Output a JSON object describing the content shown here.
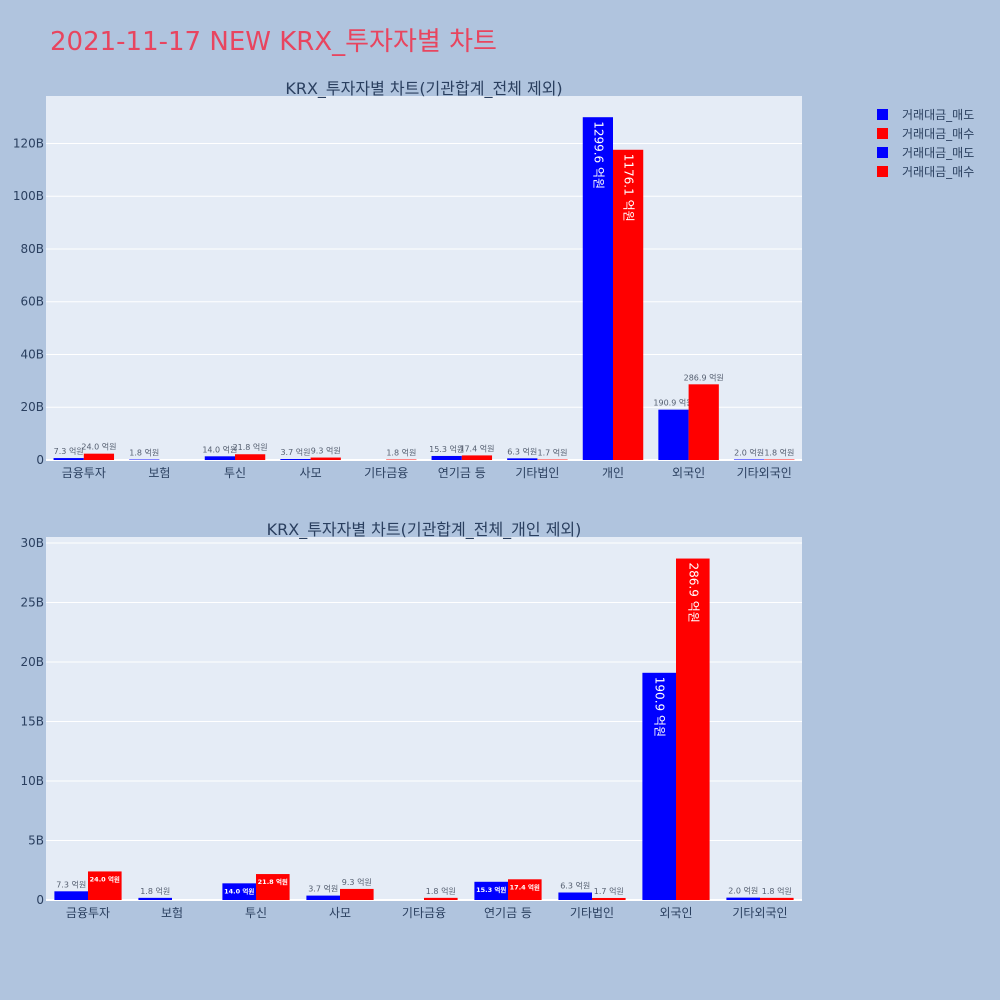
{
  "page": {
    "title": "2021-11-17 NEW KRX_투자자별 차트",
    "title_color": "#e8455f",
    "background": "#b0c4de",
    "plot_background": "#e5ecf6"
  },
  "legend": [
    {
      "label": "거래대금_매도",
      "color": "#0000ff"
    },
    {
      "label": "거래대금_매수",
      "color": "#ff0000"
    },
    {
      "label": "거래대금_매도",
      "color": "#0000ff"
    },
    {
      "label": "거래대금_매수",
      "color": "#ff0000"
    }
  ],
  "chart_data": [
    {
      "type": "bar",
      "title": "KRX_투자자별 차트(기관합계_전체 제외)",
      "categories": [
        "금융투자",
        "보험",
        "투신",
        "사모",
        "기타금융",
        "연기금 등",
        "기타법인",
        "개인",
        "외국인",
        "기타외국인"
      ],
      "yunit": "B",
      "ylim": [
        0,
        138
      ],
      "yticks": [
        0,
        20,
        40,
        60,
        80,
        100,
        120
      ],
      "ytick_labels": [
        "0",
        "20B",
        "40B",
        "60B",
        "80B",
        "100B",
        "120B"
      ],
      "series": [
        {
          "name": "거래대금_매도",
          "color": "#0000ff",
          "values": [
            0.73,
            0.18,
            1.4,
            0.37,
            0,
            1.53,
            0.63,
            129.96,
            19.09,
            0.2
          ],
          "labels": [
            "7.3 억원",
            "1.8 억원",
            "14.0 억원",
            "3.7 억원",
            "",
            "15.3 억원",
            "6.3 억원",
            "1299.6 억원",
            "190.9 억원",
            "2.0 억원"
          ]
        },
        {
          "name": "거래대금_매수",
          "color": "#ff0000",
          "values": [
            2.4,
            0,
            2.18,
            0.93,
            0.18,
            1.74,
            0.17,
            117.61,
            28.69,
            0.18
          ],
          "labels": [
            "24.0 억원",
            "",
            "21.8 억원",
            "9.3 억원",
            "1.8 억원",
            "17.4 억원",
            "1.7 억원",
            "1176.1 억원",
            "286.9 억원",
            "1.8 억원"
          ]
        }
      ],
      "grid": true,
      "legend_position": "top-right"
    },
    {
      "type": "bar",
      "title": "KRX_투자자별 차트(기관합계_전체_개인 제외)",
      "categories": [
        "금융투자",
        "보험",
        "투신",
        "사모",
        "기타금융",
        "연기금 등",
        "기타법인",
        "외국인",
        "기타외국인"
      ],
      "yunit": "B",
      "ylim": [
        0,
        30.5
      ],
      "yticks": [
        0,
        5,
        10,
        15,
        20,
        25,
        30
      ],
      "ytick_labels": [
        "0",
        "5B",
        "10B",
        "15B",
        "20B",
        "25B",
        "30B"
      ],
      "series": [
        {
          "name": "거래대금_매도",
          "color": "#0000ff",
          "values": [
            0.73,
            0.18,
            1.4,
            0.37,
            0,
            1.53,
            0.63,
            19.09,
            0.2
          ],
          "labels": [
            "7.3 억원",
            "1.8 억원",
            "14.0 억원",
            "3.7 억원",
            "",
            "15.3 억원",
            "6.3 억원",
            "190.9 억원",
            "2.0 억원"
          ]
        },
        {
          "name": "거래대금_매수",
          "color": "#ff0000",
          "values": [
            2.4,
            0,
            2.18,
            0.93,
            0.18,
            1.74,
            0.17,
            28.69,
            0.18
          ],
          "labels": [
            "24.0 억원",
            "",
            "21.8 억원",
            "9.3 억원",
            "1.8 억원",
            "17.4 억원",
            "1.7 억원",
            "286.9 억원",
            "1.8 억원"
          ]
        }
      ],
      "grid": true,
      "legend_position": "top-right"
    }
  ]
}
